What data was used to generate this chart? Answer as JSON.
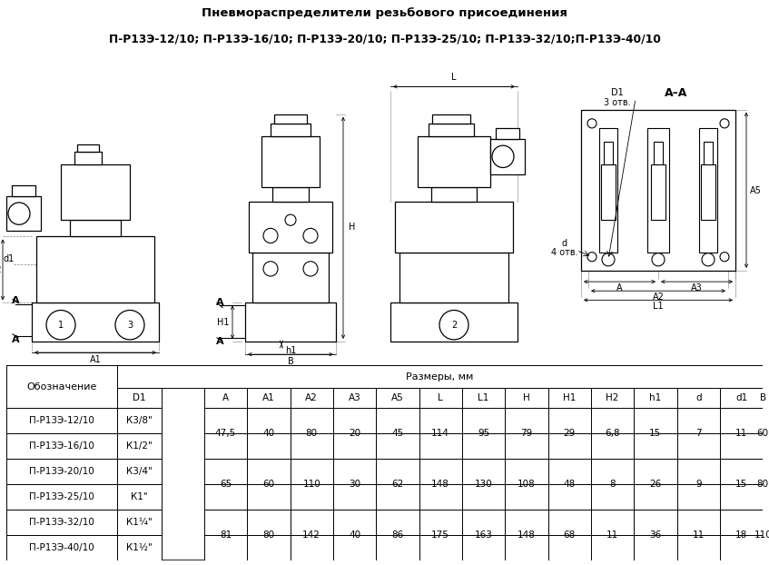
{
  "title_line1": "Пневмораспределители резьбового присоединения",
  "title_line2": "П-Р13Э-12/10; П-Р13Э-16/10; П-Р13Э-20/10; П-Р13Э-25/10; П-Р13Э-32/10;П-Р13Э-40/10",
  "table_header_merged": "Размеры, мм",
  "col_oboznachenie": "Обозначение",
  "col_headers": [
    "D1",
    "A",
    "A1",
    "A2",
    "A3",
    "A5",
    "L",
    "L1",
    "H",
    "H1",
    "H2",
    "h1",
    "d",
    "d1",
    "B"
  ],
  "row_names": [
    "П-Р13Э-12/10",
    "П-Р13Э-16/10",
    "П-Р13Э-20/10",
    "П-Р13Э-25/10",
    "П-Р13Э-32/10",
    "П-Р13Э-40/10"
  ],
  "row_d1": [
    "К3/8\"",
    "К1/2\"",
    "К3/4\"",
    "К1\"",
    "К1¼\"",
    "К1½\""
  ],
  "merged_vals": [
    [
      "47,5",
      "40",
      "80",
      "20",
      "45",
      "114",
      "95",
      "79",
      "29",
      "6,8",
      "15",
      "7",
      "11",
      "60"
    ],
    [
      "65",
      "60",
      "110",
      "30",
      "62",
      "148",
      "130",
      "108",
      "48",
      "8",
      "26",
      "9",
      "15",
      "80"
    ],
    [
      "81",
      "80",
      "142",
      "40",
      "86",
      "175",
      "163",
      "148",
      "68",
      "11",
      "36",
      "11",
      "18",
      "110"
    ]
  ],
  "bg_color": "#ffffff"
}
